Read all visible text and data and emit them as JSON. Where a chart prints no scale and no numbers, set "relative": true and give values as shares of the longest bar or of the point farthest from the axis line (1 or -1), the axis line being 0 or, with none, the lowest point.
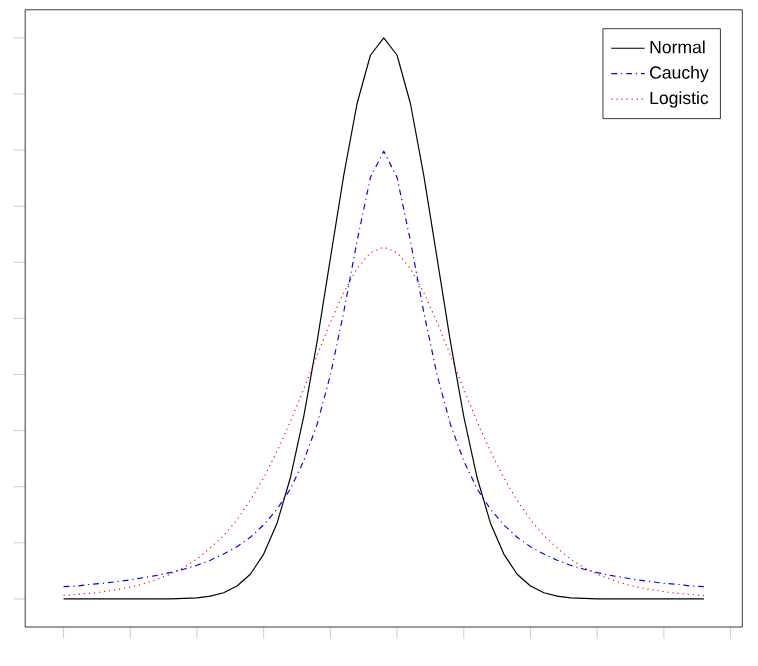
{
  "chart_data": {
    "type": "line",
    "relative": true,
    "legend": "top right",
    "categories": [
      null,
      null,
      null,
      null,
      null,
      null,
      null,
      null,
      null,
      null,
      null,
      null,
      null,
      null,
      null,
      null,
      null,
      null,
      null,
      null,
      null,
      null,
      null,
      null,
      null,
      null,
      null,
      null,
      null,
      null,
      null,
      null,
      null,
      null,
      null,
      null,
      null,
      null,
      null,
      null,
      null,
      null,
      null,
      null,
      null,
      null,
      null,
      null,
      null
    ],
    "series": [
      {
        "name": "Normal",
        "color": "#000000",
        "line_style": "solid",
        "values": [
          0,
          0,
          0,
          0,
          0,
          0,
          0,
          0,
          0,
          0.001,
          0.002,
          0.005,
          0.011,
          0.023,
          0.044,
          0.08,
          0.135,
          0.216,
          0.325,
          0.458,
          0.607,
          0.755,
          0.883,
          0.969,
          1,
          0.969,
          0.883,
          0.755,
          0.607,
          0.458,
          0.325,
          0.216,
          0.135,
          0.08,
          0.044,
          0.023,
          0.011,
          0.005,
          0.002,
          0.001,
          0,
          0,
          0,
          0,
          0,
          0,
          0,
          0,
          0
        ]
      },
      {
        "name": "Cauchy",
        "color": "#0000ff",
        "line_style": "dashdot",
        "values": [
          0.022,
          0.023,
          0.026,
          0.028,
          0.031,
          0.034,
          0.038,
          0.042,
          0.047,
          0.053,
          0.06,
          0.069,
          0.08,
          0.093,
          0.11,
          0.132,
          0.16,
          0.196,
          0.246,
          0.311,
          0.399,
          0.511,
          0.638,
          0.751,
          0.798,
          0.751,
          0.638,
          0.511,
          0.399,
          0.311,
          0.246,
          0.196,
          0.16,
          0.132,
          0.11,
          0.093,
          0.08,
          0.069,
          0.06,
          0.053,
          0.047,
          0.042,
          0.038,
          0.034,
          0.031,
          0.028,
          0.026,
          0.023,
          0.022
        ]
      },
      {
        "name": "Logistic",
        "color": "#ff0000",
        "line_style": "dotted",
        "values": [
          0.006,
          0.008,
          0.01,
          0.013,
          0.017,
          0.021,
          0.027,
          0.035,
          0.044,
          0.056,
          0.071,
          0.091,
          0.113,
          0.141,
          0.176,
          0.216,
          0.263,
          0.316,
          0.374,
          0.434,
          0.493,
          0.546,
          0.589,
          0.617,
          0.627,
          0.617,
          0.589,
          0.546,
          0.493,
          0.434,
          0.374,
          0.316,
          0.263,
          0.216,
          0.176,
          0.141,
          0.113,
          0.091,
          0.071,
          0.056,
          0.044,
          0.035,
          0.027,
          0.021,
          0.017,
          0.013,
          0.01,
          0.008,
          0.006
        ]
      }
    ]
  }
}
